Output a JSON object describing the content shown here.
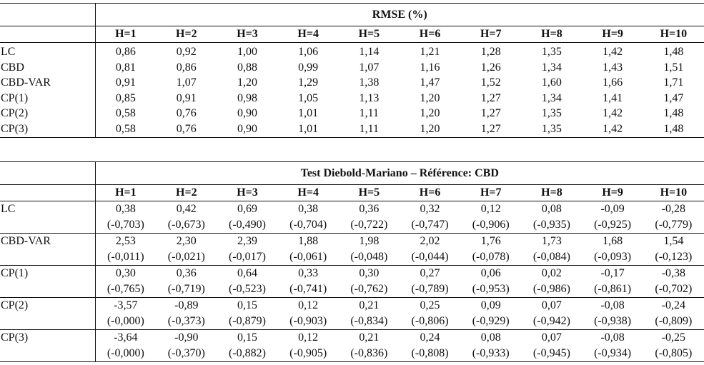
{
  "table1": {
    "title": "RMSE (%)",
    "headers": [
      "H=1",
      "H=2",
      "H=3",
      "H=4",
      "H=5",
      "H=6",
      "H=7",
      "H=8",
      "H=9",
      "H=10"
    ],
    "rows": [
      {
        "label": "LC",
        "values": [
          "0,86",
          "0,92",
          "1,00",
          "1,06",
          "1,14",
          "1,21",
          "1,28",
          "1,35",
          "1,42",
          "1,48"
        ]
      },
      {
        "label": "CBD",
        "values": [
          "0,81",
          "0,86",
          "0,88",
          "0,99",
          "1,07",
          "1,16",
          "1,26",
          "1,34",
          "1,43",
          "1,51"
        ]
      },
      {
        "label": "CBD-VAR",
        "values": [
          "0,91",
          "1,07",
          "1,20",
          "1,29",
          "1,38",
          "1,47",
          "1,52",
          "1,60",
          "1,66",
          "1,71"
        ]
      },
      {
        "label": "CP(1)",
        "values": [
          "0,85",
          "0,91",
          "0,98",
          "1,05",
          "1,13",
          "1,20",
          "1,27",
          "1,34",
          "1,41",
          "1,47"
        ]
      },
      {
        "label": "CP(2)",
        "values": [
          "0,58",
          "0,76",
          "0,90",
          "1,01",
          "1,11",
          "1,20",
          "1,27",
          "1,35",
          "1,42",
          "1,48"
        ]
      },
      {
        "label": "CP(3)",
        "values": [
          "0,58",
          "0,76",
          "0,90",
          "1,01",
          "1,11",
          "1,20",
          "1,27",
          "1,35",
          "1,42",
          "1,48"
        ]
      }
    ]
  },
  "table2": {
    "title": "Test Diebold-Mariano – Référence: CBD",
    "headers": [
      "H=1",
      "H=2",
      "H=3",
      "H=4",
      "H=5",
      "H=6",
      "H=7",
      "H=8",
      "H=9",
      "H=10"
    ],
    "rows": [
      {
        "label": "LC",
        "stats": [
          "0,38",
          "0,42",
          "0,69",
          "0,38",
          "0,36",
          "0,32",
          "0,12",
          "0,08",
          "-0,09",
          "-0,28"
        ],
        "pvalues": [
          "(-0,703)",
          "(-0,673)",
          "(-0,490)",
          "(-0,704)",
          "(-0,722)",
          "(-0,747)",
          "(-0,906)",
          "(-0,935)",
          "(-0,925)",
          "(-0,779)"
        ]
      },
      {
        "label": "CBD-VAR",
        "stats": [
          "2,53",
          "2,30",
          "2,39",
          "1,88",
          "1,98",
          "2,02",
          "1,76",
          "1,73",
          "1,68",
          "1,54"
        ],
        "pvalues": [
          "(-0,011)",
          "(-0,021)",
          "(-0,017)",
          "(-0,061)",
          "(-0,048)",
          "(-0,044)",
          "(-0,078)",
          "(-0,084)",
          "(-0,093)",
          "(-0,123)"
        ]
      },
      {
        "label": "CP(1)",
        "stats": [
          "0,30",
          "0,36",
          "0,64",
          "0,33",
          "0,30",
          "0,27",
          "0,06",
          "0,02",
          "-0,17",
          "-0,38"
        ],
        "pvalues": [
          "(-0,765)",
          "(-0,719)",
          "(-0,523)",
          "(-0,741)",
          "(-0,762)",
          "(-0,789)",
          "(-0,953)",
          "(-0,986)",
          "(-0,861)",
          "(-0,702)"
        ]
      },
      {
        "label": "CP(2)",
        "stats": [
          "-3,57",
          "-0,89",
          "0,15",
          "0,12",
          "0,21",
          "0,25",
          "0,09",
          "0,07",
          "-0,08",
          "-0,24"
        ],
        "pvalues": [
          "(-0,000)",
          "(-0,373)",
          "(-0,879)",
          "(-0,903)",
          "(-0,834)",
          "(-0,806)",
          "(-0,929)",
          "(-0,942)",
          "(-0,938)",
          "(-0,809)"
        ]
      },
      {
        "label": "CP(3)",
        "stats": [
          "-3,64",
          "-0,90",
          "0,15",
          "0,12",
          "0,21",
          "0,24",
          "0,08",
          "0,07",
          "-0,08",
          "-0,25"
        ],
        "pvalues": [
          "(-0,000)",
          "(-0,370)",
          "(-0,882)",
          "(-0,905)",
          "(-0,836)",
          "(-0,808)",
          "(-0,933)",
          "(-0,945)",
          "(-0,934)",
          "(-0,805)"
        ]
      }
    ]
  }
}
